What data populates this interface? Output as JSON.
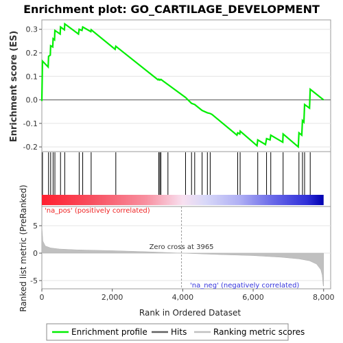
{
  "chart_data": {
    "type": "line",
    "title": "Enrichment plot: GO_CARTILAGE_DEVELOPMENT",
    "xlabel": "Rank in Ordered Dataset",
    "ylabel_top": "Enrichment score (ES)",
    "ylabel_bottom": "Ranked list metric (PreRanked)",
    "xlim": [
      0,
      8200
    ],
    "x_ticks": [
      0,
      2000,
      4000,
      6000,
      8000
    ],
    "x_tick_labels": [
      "0",
      "2,000",
      "4,000",
      "6,000",
      "8,000"
    ],
    "es_ylim": [
      -0.22,
      0.34
    ],
    "es_ticks": [
      -0.2,
      -0.1,
      0.0,
      0.1,
      0.2,
      0.3
    ],
    "es_tick_labels": [
      "-0.2",
      "-0.1",
      "0.0",
      "0.1",
      "0.2",
      "0.3"
    ],
    "metric_ylim": [
      -6.5,
      8.5
    ],
    "metric_ticks": [
      -5,
      0,
      5
    ],
    "metric_tick_labels": [
      "-5",
      "0",
      "5"
    ],
    "zero_cross_rank": 3965,
    "zero_cross_label": "Zero cross at 3965",
    "pos_label": "'na_pos' (positively correlated)",
    "neg_label": "'na_neg' (negatively correlated)",
    "enrichment_profile": {
      "name": "Enrichment profile",
      "color": "#00ee00",
      "points": [
        [
          0,
          -0.005
        ],
        [
          18,
          0.165
        ],
        [
          180,
          0.14
        ],
        [
          190,
          0.185
        ],
        [
          240,
          0.19
        ],
        [
          250,
          0.23
        ],
        [
          310,
          0.225
        ],
        [
          320,
          0.26
        ],
        [
          360,
          0.255
        ],
        [
          370,
          0.295
        ],
        [
          520,
          0.28
        ],
        [
          530,
          0.31
        ],
        [
          640,
          0.298
        ],
        [
          650,
          0.323
        ],
        [
          1040,
          0.28
        ],
        [
          1060,
          0.3
        ],
        [
          1140,
          0.295
        ],
        [
          1160,
          0.31
        ],
        [
          1390,
          0.29
        ],
        [
          1400,
          0.298
        ],
        [
          2080,
          0.215
        ],
        [
          2100,
          0.228
        ],
        [
          3300,
          0.085
        ],
        [
          3320,
          0.088
        ],
        [
          3350,
          0.084
        ],
        [
          3380,
          0.087
        ],
        [
          4080,
          0.01
        ],
        [
          4250,
          -0.015
        ],
        [
          4340,
          -0.02
        ],
        [
          4550,
          -0.045
        ],
        [
          4700,
          -0.055
        ],
        [
          4780,
          -0.058
        ],
        [
          4830,
          -0.062
        ],
        [
          5540,
          -0.15
        ],
        [
          5560,
          -0.14
        ],
        [
          5620,
          -0.145
        ],
        [
          5630,
          -0.133
        ],
        [
          6110,
          -0.195
        ],
        [
          6130,
          -0.17
        ],
        [
          6350,
          -0.19
        ],
        [
          6380,
          -0.165
        ],
        [
          6480,
          -0.17
        ],
        [
          6500,
          -0.15
        ],
        [
          6840,
          -0.18
        ],
        [
          6850,
          -0.145
        ],
        [
          7280,
          -0.2
        ],
        [
          7300,
          -0.14
        ],
        [
          7380,
          -0.15
        ],
        [
          7400,
          -0.088
        ],
        [
          7440,
          -0.095
        ],
        [
          7460,
          -0.02
        ],
        [
          7600,
          -0.035
        ],
        [
          7620,
          0.045
        ],
        [
          8000,
          0.0
        ]
      ]
    },
    "hits": {
      "name": "Hits",
      "ranks": [
        18,
        190,
        250,
        320,
        370,
        530,
        650,
        1060,
        1160,
        1400,
        2100,
        3320,
        3350,
        3380,
        3580,
        4080,
        4250,
        4340,
        4550,
        4700,
        4780,
        5560,
        5630,
        6130,
        6380,
        6500,
        6850,
        7300,
        7400,
        7460,
        7620
      ]
    },
    "ranking_metric": {
      "name": "Ranking metric scores",
      "color": "#c0c0c0",
      "points": [
        [
          0,
          5.0
        ],
        [
          30,
          2.2
        ],
        [
          100,
          1.3
        ],
        [
          250,
          0.95
        ],
        [
          500,
          0.75
        ],
        [
          1000,
          0.6
        ],
        [
          2000,
          0.45
        ],
        [
          3000,
          0.25
        ],
        [
          3965,
          0.0
        ],
        [
          5000,
          -0.25
        ],
        [
          6000,
          -0.45
        ],
        [
          6800,
          -0.75
        ],
        [
          7300,
          -1.05
        ],
        [
          7600,
          -1.4
        ],
        [
          7800,
          -2.0
        ],
        [
          7920,
          -3.0
        ],
        [
          7960,
          -4.0
        ],
        [
          7990,
          -6.0
        ],
        [
          8000,
          -6.0
        ]
      ]
    },
    "legend": [
      {
        "name": "Enrichment profile",
        "color": "#00ee00"
      },
      {
        "name": "Hits",
        "color": "#606060"
      },
      {
        "name": "Ranking metric scores",
        "color": "#c0c0c0"
      }
    ]
  }
}
